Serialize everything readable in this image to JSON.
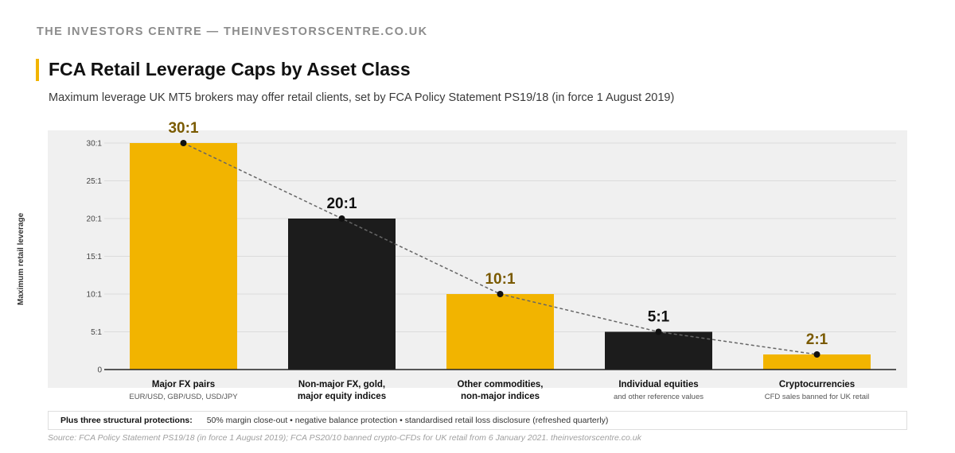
{
  "brand": "THE INVESTORS CENTRE — THEINVESTORSCENTRE.CO.UK",
  "title": "FCA Retail Leverage Caps by Asset Class",
  "subtitle": "Maximum leverage UK MT5 brokers may offer retail clients, set by FCA Policy Statement PS19/18 (in force 1 August 2019)",
  "colors": {
    "gold": "#f2b400",
    "black": "#1c1c1c",
    "gold_label": "#7a5a00",
    "panel": "#f0f0f0"
  },
  "chart_data": {
    "type": "bar",
    "ylabel": "Maximum retail leverage",
    "ylim": [
      0,
      30
    ],
    "yticks": [
      {
        "value": 0,
        "label": "0"
      },
      {
        "value": 5,
        "label": "5:1"
      },
      {
        "value": 10,
        "label": "10:1"
      },
      {
        "value": 15,
        "label": "15:1"
      },
      {
        "value": 20,
        "label": "20:1"
      },
      {
        "value": 25,
        "label": "25:1"
      },
      {
        "value": 30,
        "label": "30:1"
      }
    ],
    "grid": true,
    "trend_line": "dashed",
    "bars": [
      {
        "category": [
          "Major FX pairs"
        ],
        "sublabel": "EUR/USD, GBP/USD, USD/JPY",
        "value": 30,
        "label": "30:1",
        "color": "gold"
      },
      {
        "category": [
          "Non-major FX, gold,",
          "major equity indices"
        ],
        "sublabel": "",
        "value": 20,
        "label": "20:1",
        "color": "black"
      },
      {
        "category": [
          "Other commodities,",
          "non-major indices"
        ],
        "sublabel": "",
        "value": 10,
        "label": "10:1",
        "color": "gold"
      },
      {
        "category": [
          "Individual equities"
        ],
        "sublabel": "and other reference values",
        "value": 5,
        "label": "5:1",
        "color": "black"
      },
      {
        "category": [
          "Cryptocurrencies"
        ],
        "sublabel": "CFD sales banned for UK retail",
        "value": 2,
        "label": "2:1",
        "color": "gold"
      }
    ]
  },
  "note": {
    "label": "Plus three structural protections:",
    "text": "50% margin close-out • negative balance protection • standardised retail loss disclosure (refreshed quarterly)"
  },
  "source": "Source: FCA Policy Statement PS19/18 (in force 1 August 2019); FCA PS20/10 banned crypto-CFDs for UK retail from 6 January 2021. theinvestorscentre.co.uk"
}
